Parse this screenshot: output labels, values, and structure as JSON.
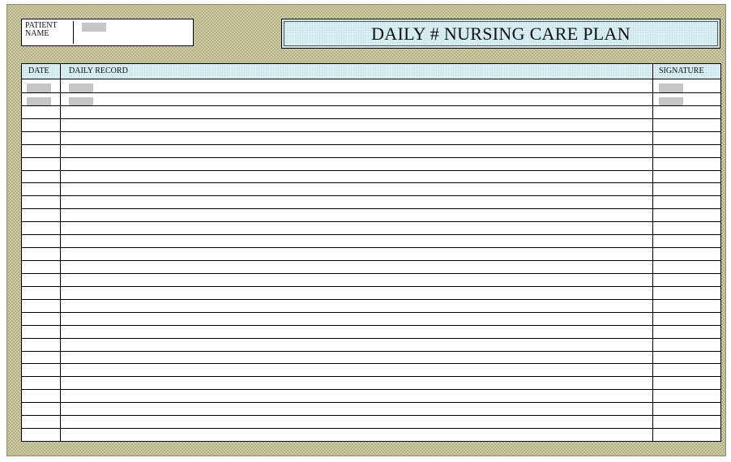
{
  "form": {
    "title": "DAILY # NURSING CARE PLAN",
    "patient_name_label": "PATIENT\nNAME",
    "patient_name_value": ""
  },
  "table": {
    "headers": {
      "date": "DATE",
      "record": "DAILY RECORD",
      "signature": "SIGNATURE"
    },
    "row_count": 28,
    "rows": [
      {
        "date": "",
        "record": "",
        "signature": ""
      },
      {
        "date": "",
        "record": "",
        "signature": ""
      }
    ]
  },
  "colors": {
    "frame": "#cfcca3",
    "header_fill": "#d8eef2",
    "redaction": "#c6c6c6"
  }
}
